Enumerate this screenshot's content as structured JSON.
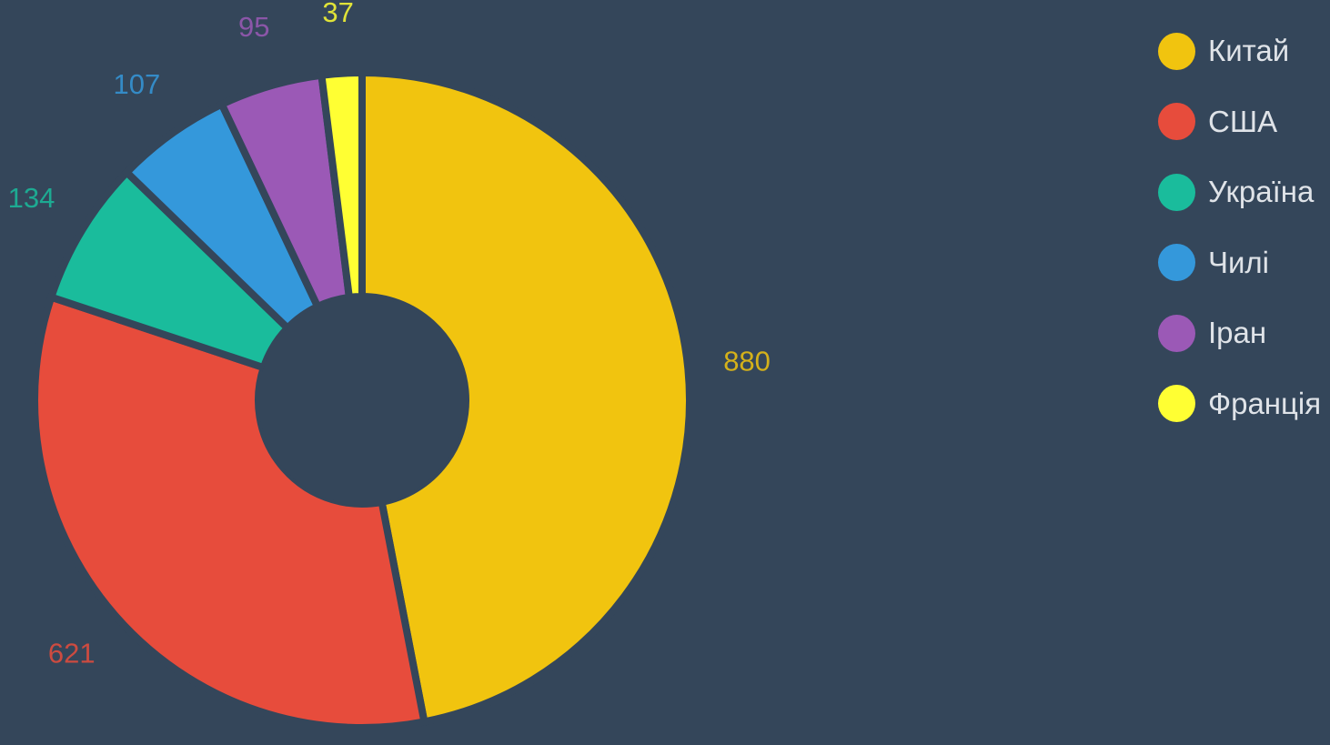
{
  "chart_data": {
    "type": "pie",
    "variant": "donut",
    "categories": [
      "Китай",
      "США",
      "Україна",
      "Чилі",
      "Іран",
      "Франція"
    ],
    "values": [
      880,
      621,
      134,
      107,
      95,
      37
    ],
    "colors": [
      "#f1c40f",
      "#e74c3c",
      "#1abc9c",
      "#3498db",
      "#9b59b6",
      "#ffff33"
    ],
    "data_labels": [
      "880",
      "621",
      "134",
      "107",
      "95",
      "37"
    ],
    "legend_position": "top-right",
    "start_angle": "12 o'clock",
    "direction": "clockwise"
  },
  "background": "#34465a"
}
